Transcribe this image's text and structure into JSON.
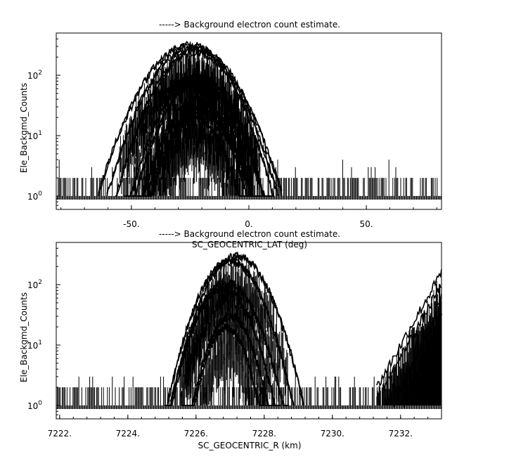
{
  "chart_data": [
    {
      "type": "line",
      "title": "-----> Background electron count estimate.",
      "xlabel": "SC_GEOCENTRIC_LAT (deg)",
      "ylabel": "Ele_Backgmd_Counts",
      "xlim": [
        -82,
        82
      ],
      "ylim": [
        0.6,
        500
      ],
      "yscale": "log",
      "xticks": [
        {
          "value": -50,
          "label": "-50."
        },
        {
          "value": 0,
          "label": "0."
        },
        {
          "value": 50,
          "label": "50."
        }
      ],
      "yticks": [
        {
          "value": 1,
          "base": "10",
          "exp": "0"
        },
        {
          "value": 10,
          "base": "10",
          "exp": "1"
        },
        {
          "value": 100,
          "base": "10",
          "exp": "2"
        }
      ],
      "grid": false,
      "noise_range": [
        -82,
        82
      ],
      "noise_floor": [
        1,
        2,
        3,
        4
      ],
      "peaks": [
        {
          "center": -25,
          "width": 15,
          "peak": 320
        },
        {
          "center": -24,
          "width": 14,
          "peak": 290
        },
        {
          "center": -23,
          "width": 13,
          "peak": 250
        },
        {
          "center": -22,
          "width": 12,
          "peak": 100
        },
        {
          "center": -21,
          "width": 12,
          "peak": 80
        },
        {
          "center": -22,
          "width": 11,
          "peak": 40
        },
        {
          "center": -21,
          "width": 10,
          "peak": 30
        },
        {
          "center": -23,
          "width": 10,
          "peak": 20
        }
      ]
    },
    {
      "type": "line",
      "title": "-----> Background electron count estimate.",
      "xlabel": "SC_GEOCENTRIC_R (km)",
      "ylabel": "Ele_Backgmd_Counts",
      "xlim": [
        7221.9,
        7233.2
      ],
      "ylim": [
        0.6,
        500
      ],
      "yscale": "log",
      "xticks": [
        {
          "value": 7222,
          "label": "7222."
        },
        {
          "value": 7224,
          "label": "7224."
        },
        {
          "value": 7226,
          "label": "7226."
        },
        {
          "value": 7228,
          "label": "7228."
        },
        {
          "value": 7230,
          "label": "7230."
        },
        {
          "value": 7232,
          "label": "7232."
        }
      ],
      "yticks": [
        {
          "value": 1,
          "base": "10",
          "exp": "0"
        },
        {
          "value": 10,
          "base": "10",
          "exp": "1"
        },
        {
          "value": 100,
          "base": "10",
          "exp": "2"
        }
      ],
      "grid": false,
      "noise_range": [
        7221.9,
        7233.2
      ],
      "noise_floor": [
        1,
        2,
        3
      ],
      "peaks": [
        {
          "center": 7227.2,
          "width": 0.75,
          "peak": 300
        },
        {
          "center": 7227.0,
          "width": 0.72,
          "peak": 250
        },
        {
          "center": 7226.9,
          "width": 0.7,
          "peak": 110
        },
        {
          "center": 7226.8,
          "width": 0.65,
          "peak": 90
        },
        {
          "center": 7227.0,
          "width": 0.55,
          "peak": 30
        },
        {
          "center": 7226.9,
          "width": 0.5,
          "peak": 20
        }
      ],
      "edge_rise": [
        {
          "start": 7231.3,
          "end": 7233.2,
          "from": 2,
          "to": 160
        },
        {
          "start": 7231.5,
          "end": 7233.2,
          "from": 2,
          "to": 100
        },
        {
          "start": 7231.8,
          "end": 7233.2,
          "from": 1,
          "to": 60
        },
        {
          "start": 7232.1,
          "end": 7233.2,
          "from": 1,
          "to": 30
        }
      ]
    }
  ]
}
